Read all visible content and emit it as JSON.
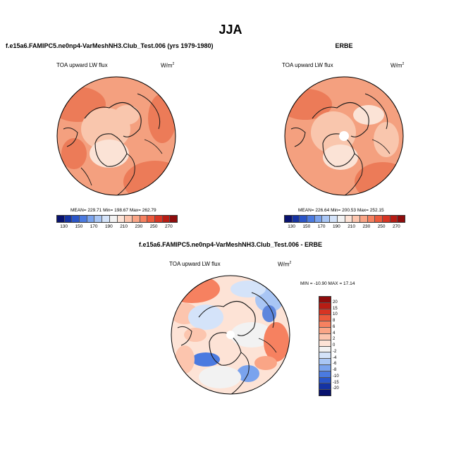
{
  "title": "JJA",
  "panels": [
    {
      "header": "f.e15a6.FAMIPC5.ne0np4-VarMeshNH3.Club_Test.006 (yrs 1979-1980)",
      "variable": "TOA upward LW flux",
      "units_base": "W/m",
      "units_exp": "2",
      "stats": "MEAN= 229.71   Min= 198.67   Max= 262.79"
    },
    {
      "header": "ERBE",
      "variable": "TOA upward LW flux",
      "units_base": "W/m",
      "units_exp": "2",
      "stats": "MEAN= 226.64   Min= 200.53   Max= 252.15"
    },
    {
      "header": "f.e15a6.FAMIPC5.ne0np4-VarMeshNH3.Club_Test.006 - ERBE",
      "variable": "TOA upward LW flux",
      "units_base": "W/m",
      "units_exp": "2",
      "stats": "MIN = -10.90  MAX = 17.14"
    }
  ],
  "colorbar_abs": {
    "labels": [
      "130",
      "150",
      "170",
      "190",
      "210",
      "230",
      "250",
      "270"
    ],
    "colors": [
      "#08126e",
      "#1533a3",
      "#2a55c8",
      "#4b7ae0",
      "#7aa3ee",
      "#a9c6f5",
      "#d4e3f9",
      "#f2f2f2",
      "#fde3d6",
      "#fcc5ae",
      "#faa586",
      "#f68160",
      "#ec5a3c",
      "#d73423",
      "#b81c14",
      "#8e0c0c"
    ]
  },
  "colorbar_diff": {
    "labels": [
      "20",
      "15",
      "10",
      "8",
      "6",
      "4",
      "2",
      "0",
      "-2",
      "-4",
      "-6",
      "-8",
      "-10",
      "-15",
      "-20"
    ],
    "colors": [
      "#8e0c0c",
      "#b81c14",
      "#d73423",
      "#ec5a3c",
      "#f68160",
      "#faa586",
      "#fcc5ae",
      "#fde3d6",
      "#f2f2f2",
      "#d4e3f9",
      "#a9c6f5",
      "#7aa3ee",
      "#4b7ae0",
      "#2a55c8",
      "#1533a3",
      "#08126e"
    ]
  },
  "colors": {
    "warm_base": "#f4a07f",
    "warm_dark": "#ec7b58",
    "warm_light": "#f9c6ad",
    "pale": "#fbe3d6",
    "cool": "#b9d1f3",
    "cool_dark": "#5f86dd",
    "coast": "#1a1a1a"
  }
}
